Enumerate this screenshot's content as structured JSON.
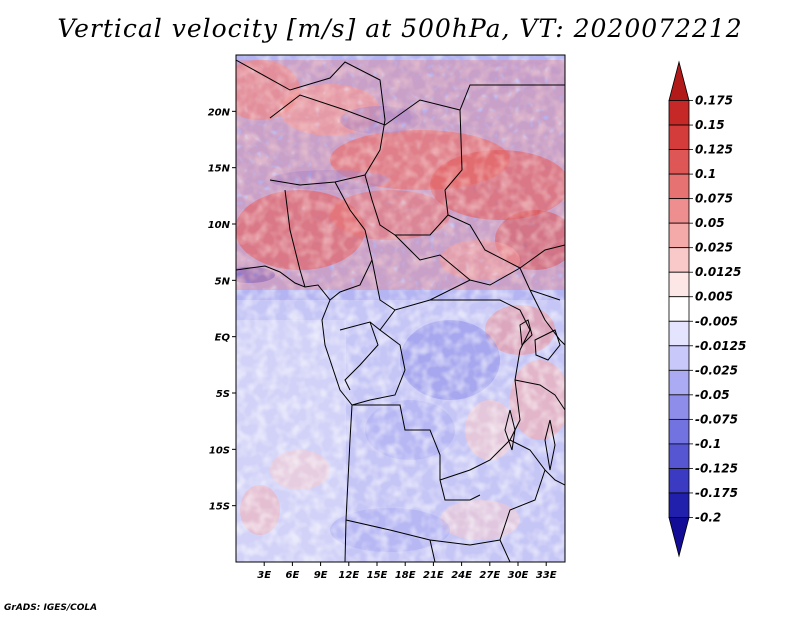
{
  "title": "Vertical velocity [m/s] at 500hPa, VT: 2020072212",
  "footer": "GrADS: IGES/COLA",
  "map": {
    "variable": "Vertical velocity",
    "units": "m/s",
    "level": "500hPa",
    "valid_time": "2020072212",
    "lon_range": [
      0,
      35
    ],
    "lat_range": [
      -20,
      25
    ],
    "lon_ticks": [
      3,
      6,
      9,
      12,
      15,
      18,
      21,
      24,
      27,
      30,
      33
    ],
    "lon_tick_labels": [
      "3E",
      "6E",
      "9E",
      "12E",
      "15E",
      "18E",
      "21E",
      "24E",
      "27E",
      "30E",
      "33E"
    ],
    "lat_ticks": [
      20,
      15,
      10,
      5,
      0,
      -5,
      -10,
      -15
    ],
    "lat_tick_labels": [
      "20N",
      "15N",
      "10N",
      "5N",
      "EQ",
      "5S",
      "10S",
      "15S"
    ]
  },
  "colorbar": {
    "levels": [
      "0.175",
      "0.15",
      "0.125",
      "0.1",
      "0.075",
      "0.05",
      "0.025",
      "0.0125",
      "0.005",
      "-0.005",
      "-0.0125",
      "-0.025",
      "-0.05",
      "-0.075",
      "-0.1",
      "-0.125",
      "-0.175",
      "-0.2"
    ],
    "colors": [
      "#b21a1a",
      "#c62828",
      "#d43c3c",
      "#de5656",
      "#e67272",
      "#ee8e8e",
      "#f5aaaa",
      "#f9c8c8",
      "#fde6e6",
      "#ffffff",
      "#e4e4ff",
      "#c8c8fa",
      "#ababf3",
      "#8e8eea",
      "#7272e0",
      "#5656d2",
      "#3a3ac2",
      "#2020ad",
      "#120c96"
    ]
  },
  "colors": {
    "ocean": "#a9a9f0",
    "border": "#000000"
  }
}
